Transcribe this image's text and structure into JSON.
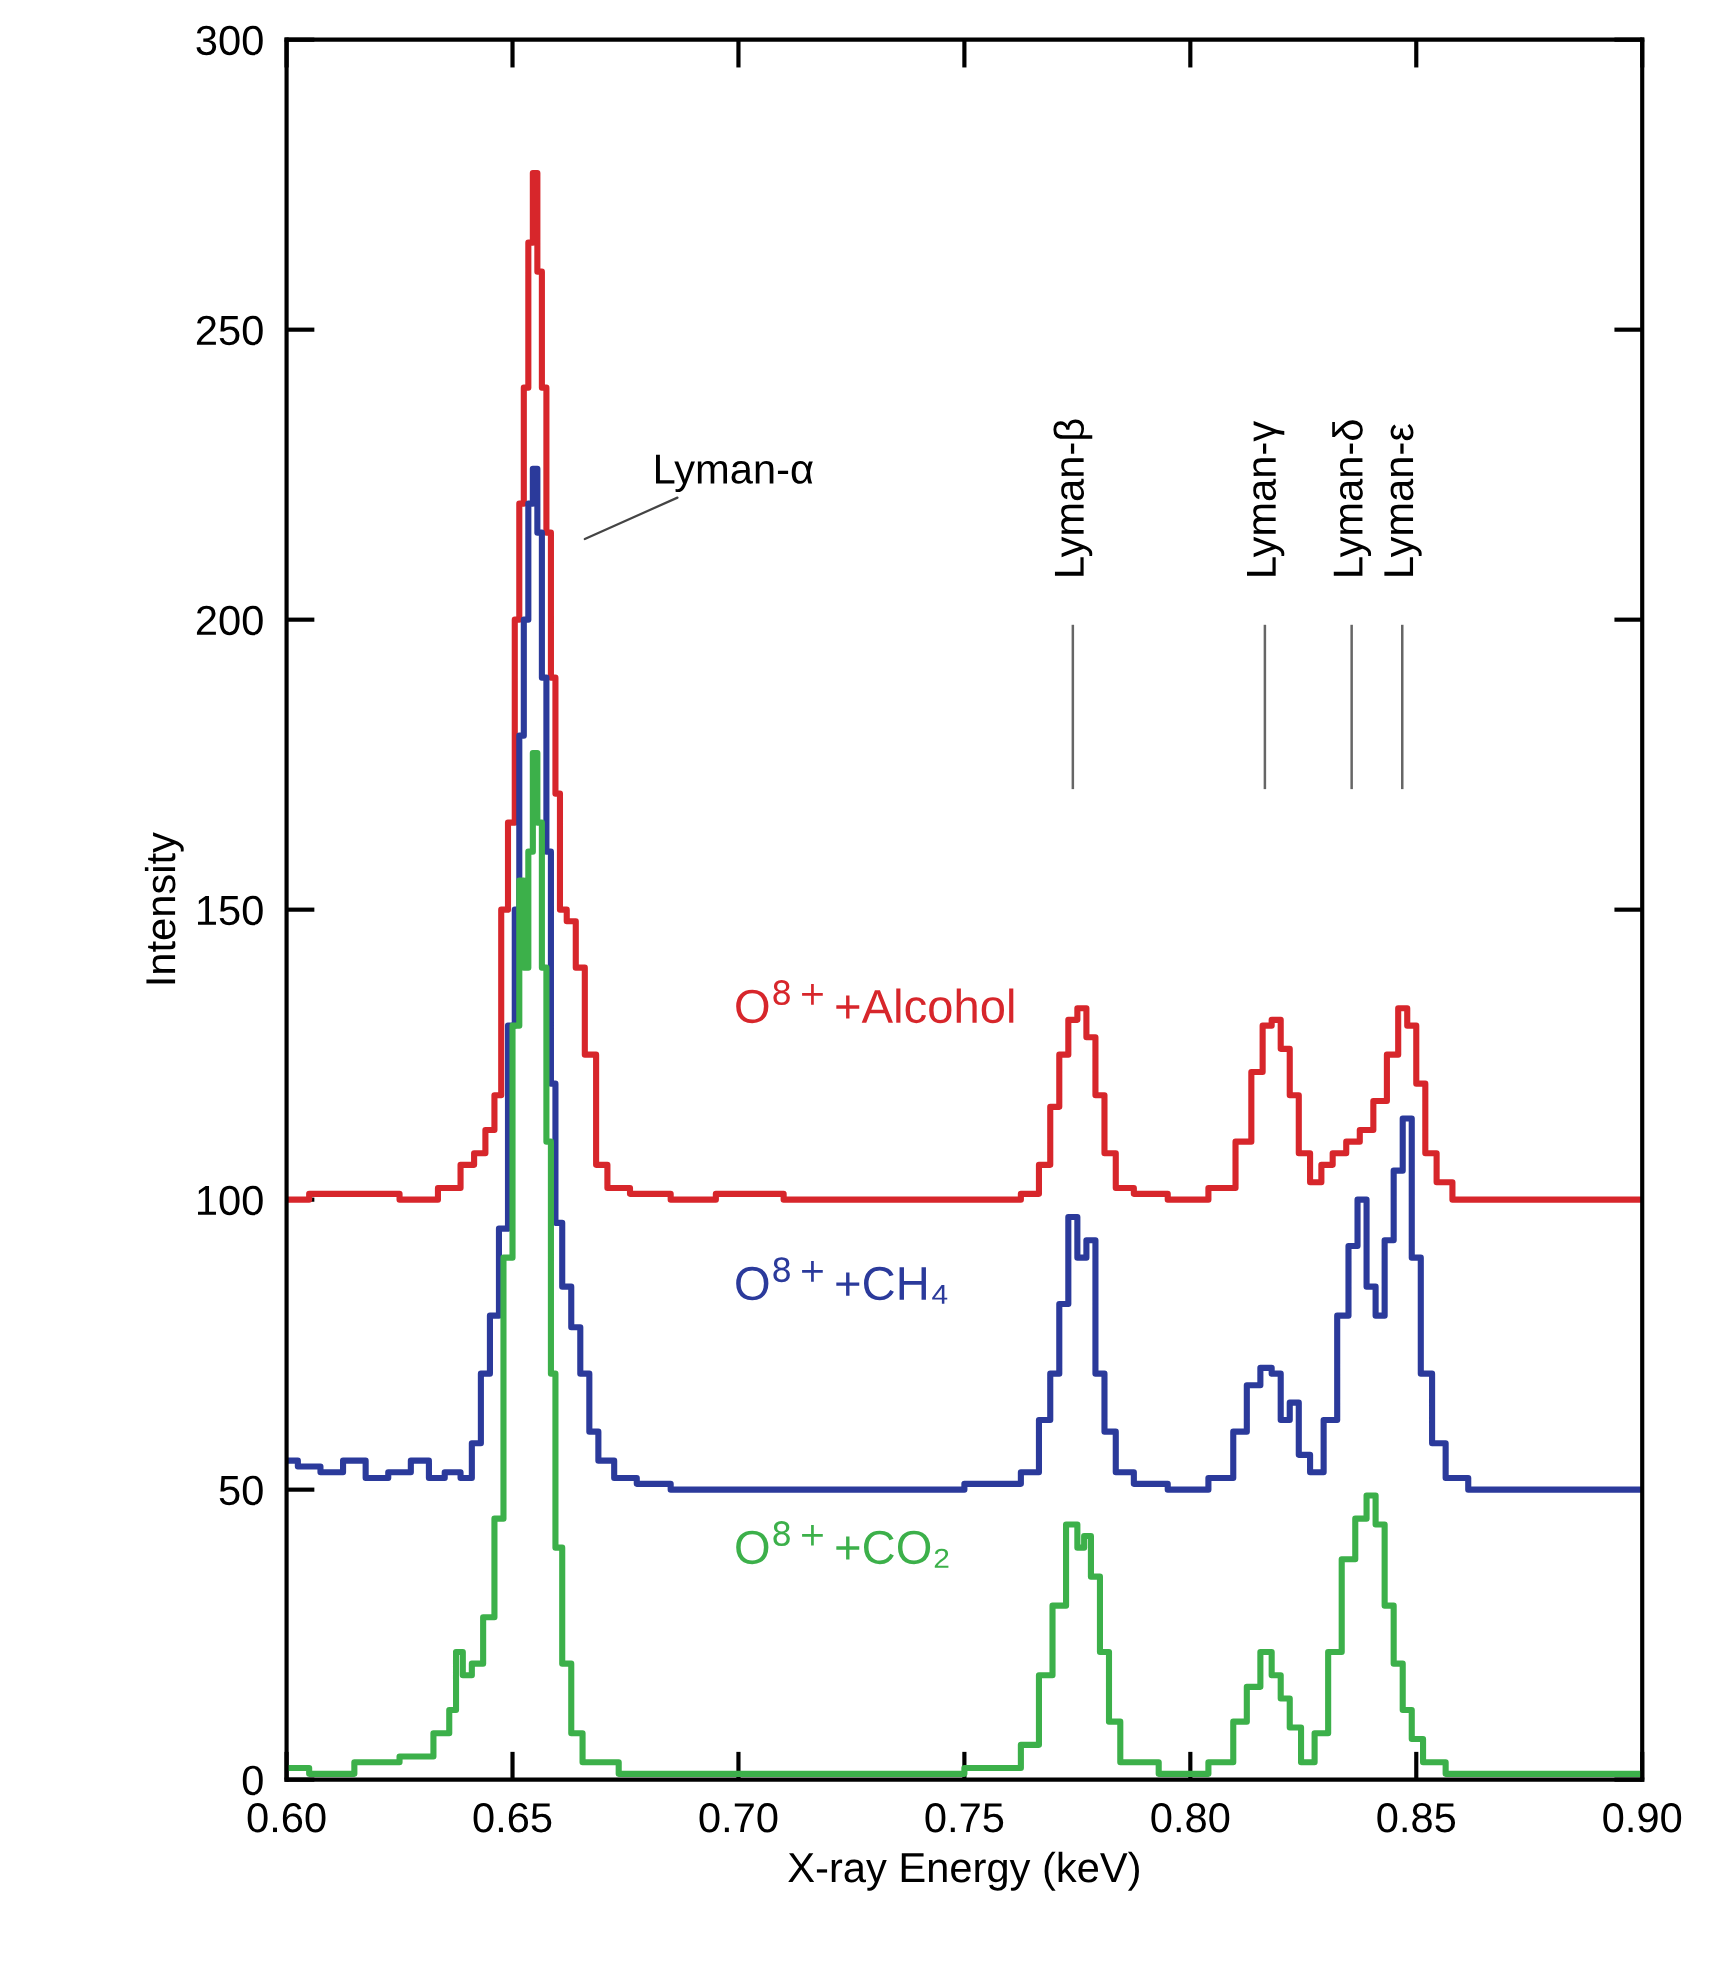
{
  "chart_data": {
    "type": "step",
    "xlabel": "X-ray Energy (keV)",
    "ylabel": "Intensity",
    "xlim": [
      0.6,
      0.9
    ],
    "ylim": [
      0,
      300
    ],
    "xticks": [
      {
        "value": 0.6,
        "label": "0.60"
      },
      {
        "value": 0.65,
        "label": "0.65"
      },
      {
        "value": 0.7,
        "label": "0.70"
      },
      {
        "value": 0.75,
        "label": "0.75"
      },
      {
        "value": 0.8,
        "label": "0.80"
      },
      {
        "value": 0.85,
        "label": "0.85"
      },
      {
        "value": 0.9,
        "label": "0.90"
      }
    ],
    "yticks": [
      0,
      50,
      100,
      150,
      200,
      250,
      300
    ],
    "grid": false,
    "legend": false,
    "marker": "none",
    "line_style": "solid",
    "series": [
      {
        "name": "O$^{8+}$+Alcohol",
        "color": "#d7262b",
        "x": [
          0.6,
          0.61,
          0.62,
          0.63,
          0.637,
          0.64,
          0.643,
          0.645,
          0.647,
          0.648,
          0.65,
          0.651,
          0.652,
          0.653,
          0.654,
          0.655,
          0.656,
          0.657,
          0.658,
          0.659,
          0.66,
          0.661,
          0.663,
          0.665,
          0.667,
          0.67,
          0.672,
          0.68,
          0.69,
          0.7,
          0.72,
          0.74,
          0.76,
          0.765,
          0.768,
          0.77,
          0.772,
          0.774,
          0.776,
          0.778,
          0.78,
          0.782,
          0.785,
          0.79,
          0.8,
          0.808,
          0.812,
          0.815,
          0.817,
          0.819,
          0.821,
          0.823,
          0.825,
          0.828,
          0.83,
          0.833,
          0.836,
          0.839,
          0.842,
          0.845,
          0.847,
          0.849,
          0.851,
          0.853,
          0.856,
          0.86,
          0.87,
          0.88,
          0.89,
          0.9
        ],
        "values": [
          100,
          101,
          101,
          100,
          102,
          106,
          108,
          112,
          118,
          150,
          165,
          200,
          220,
          240,
          265,
          277,
          260,
          240,
          215,
          190,
          170,
          150,
          148,
          140,
          125,
          106,
          102,
          101,
          100,
          101,
          100,
          100,
          100,
          101,
          106,
          116,
          125,
          131,
          133,
          128,
          118,
          108,
          102,
          101,
          100,
          102,
          110,
          122,
          130,
          131,
          126,
          118,
          108,
          103,
          106,
          108,
          110,
          112,
          117,
          125,
          133,
          130,
          120,
          108,
          103,
          100,
          100,
          100,
          100,
          100
        ]
      },
      {
        "name": "O$^{8+}$+CH₄",
        "color": "#2b3a9b",
        "x": [
          0.6,
          0.605,
          0.61,
          0.615,
          0.62,
          0.625,
          0.63,
          0.633,
          0.637,
          0.64,
          0.642,
          0.644,
          0.646,
          0.648,
          0.65,
          0.651,
          0.652,
          0.653,
          0.654,
          0.655,
          0.656,
          0.657,
          0.658,
          0.659,
          0.66,
          0.662,
          0.664,
          0.666,
          0.668,
          0.67,
          0.675,
          0.68,
          0.69,
          0.7,
          0.72,
          0.74,
          0.76,
          0.765,
          0.768,
          0.77,
          0.772,
          0.774,
          0.776,
          0.778,
          0.78,
          0.782,
          0.785,
          0.79,
          0.8,
          0.808,
          0.811,
          0.814,
          0.817,
          0.819,
          0.821,
          0.823,
          0.825,
          0.828,
          0.831,
          0.834,
          0.836,
          0.838,
          0.84,
          0.842,
          0.844,
          0.846,
          0.848,
          0.85,
          0.852,
          0.855,
          0.858,
          0.865,
          0.88,
          0.9
        ],
        "values": [
          55,
          54,
          53,
          55,
          52,
          53,
          55,
          52,
          53,
          52,
          58,
          70,
          80,
          95,
          130,
          150,
          180,
          200,
          220,
          226,
          215,
          190,
          160,
          120,
          96,
          85,
          78,
          70,
          60,
          55,
          52,
          51,
          50,
          50,
          50,
          50,
          51,
          53,
          62,
          70,
          82,
          97,
          90,
          93,
          70,
          60,
          53,
          51,
          50,
          52,
          60,
          68,
          71,
          70,
          62,
          65,
          56,
          53,
          62,
          80,
          92,
          100,
          85,
          80,
          93,
          105,
          114,
          90,
          70,
          58,
          52,
          50,
          50,
          50
        ]
      },
      {
        "name": "O$^{8+}$+CO₂",
        "color": "#3cb04a",
        "x": [
          0.6,
          0.61,
          0.62,
          0.63,
          0.635,
          0.637,
          0.638,
          0.64,
          0.642,
          0.645,
          0.647,
          0.649,
          0.651,
          0.652,
          0.653,
          0.654,
          0.655,
          0.656,
          0.657,
          0.658,
          0.659,
          0.66,
          0.662,
          0.664,
          0.667,
          0.68,
          0.7,
          0.72,
          0.74,
          0.76,
          0.765,
          0.768,
          0.771,
          0.774,
          0.776,
          0.777,
          0.779,
          0.781,
          0.783,
          0.786,
          0.8,
          0.808,
          0.811,
          0.814,
          0.817,
          0.819,
          0.821,
          0.823,
          0.826,
          0.829,
          0.832,
          0.835,
          0.838,
          0.84,
          0.842,
          0.844,
          0.846,
          0.848,
          0.85,
          0.853,
          0.86,
          0.88,
          0.9
        ],
        "values": [
          2,
          1,
          3,
          4,
          8,
          12,
          22,
          18,
          20,
          28,
          45,
          90,
          130,
          155,
          140,
          160,
          177,
          165,
          140,
          110,
          70,
          40,
          20,
          8,
          3,
          1,
          1,
          1,
          1,
          2,
          6,
          18,
          30,
          44,
          40,
          42,
          35,
          22,
          10,
          3,
          1,
          3,
          10,
          16,
          22,
          18,
          14,
          9,
          3,
          8,
          22,
          38,
          45,
          49,
          44,
          30,
          20,
          12,
          7,
          3,
          1,
          1,
          1
        ]
      }
    ],
    "annotations": [
      "Lyman-α"
    ],
    "ref_lines": [
      {
        "axis": "x",
        "value": 0.774,
        "label": "Lyman-β",
        "color": "#666666"
      },
      {
        "axis": "x",
        "value": 0.8165,
        "label": "Lyman-γ",
        "color": "#666666"
      },
      {
        "axis": "x",
        "value": 0.8357,
        "label": "Lyman-δ",
        "color": "#666666"
      },
      {
        "axis": "x",
        "value": 0.8469,
        "label": "Lyman-ε",
        "color": "#666666"
      }
    ]
  }
}
